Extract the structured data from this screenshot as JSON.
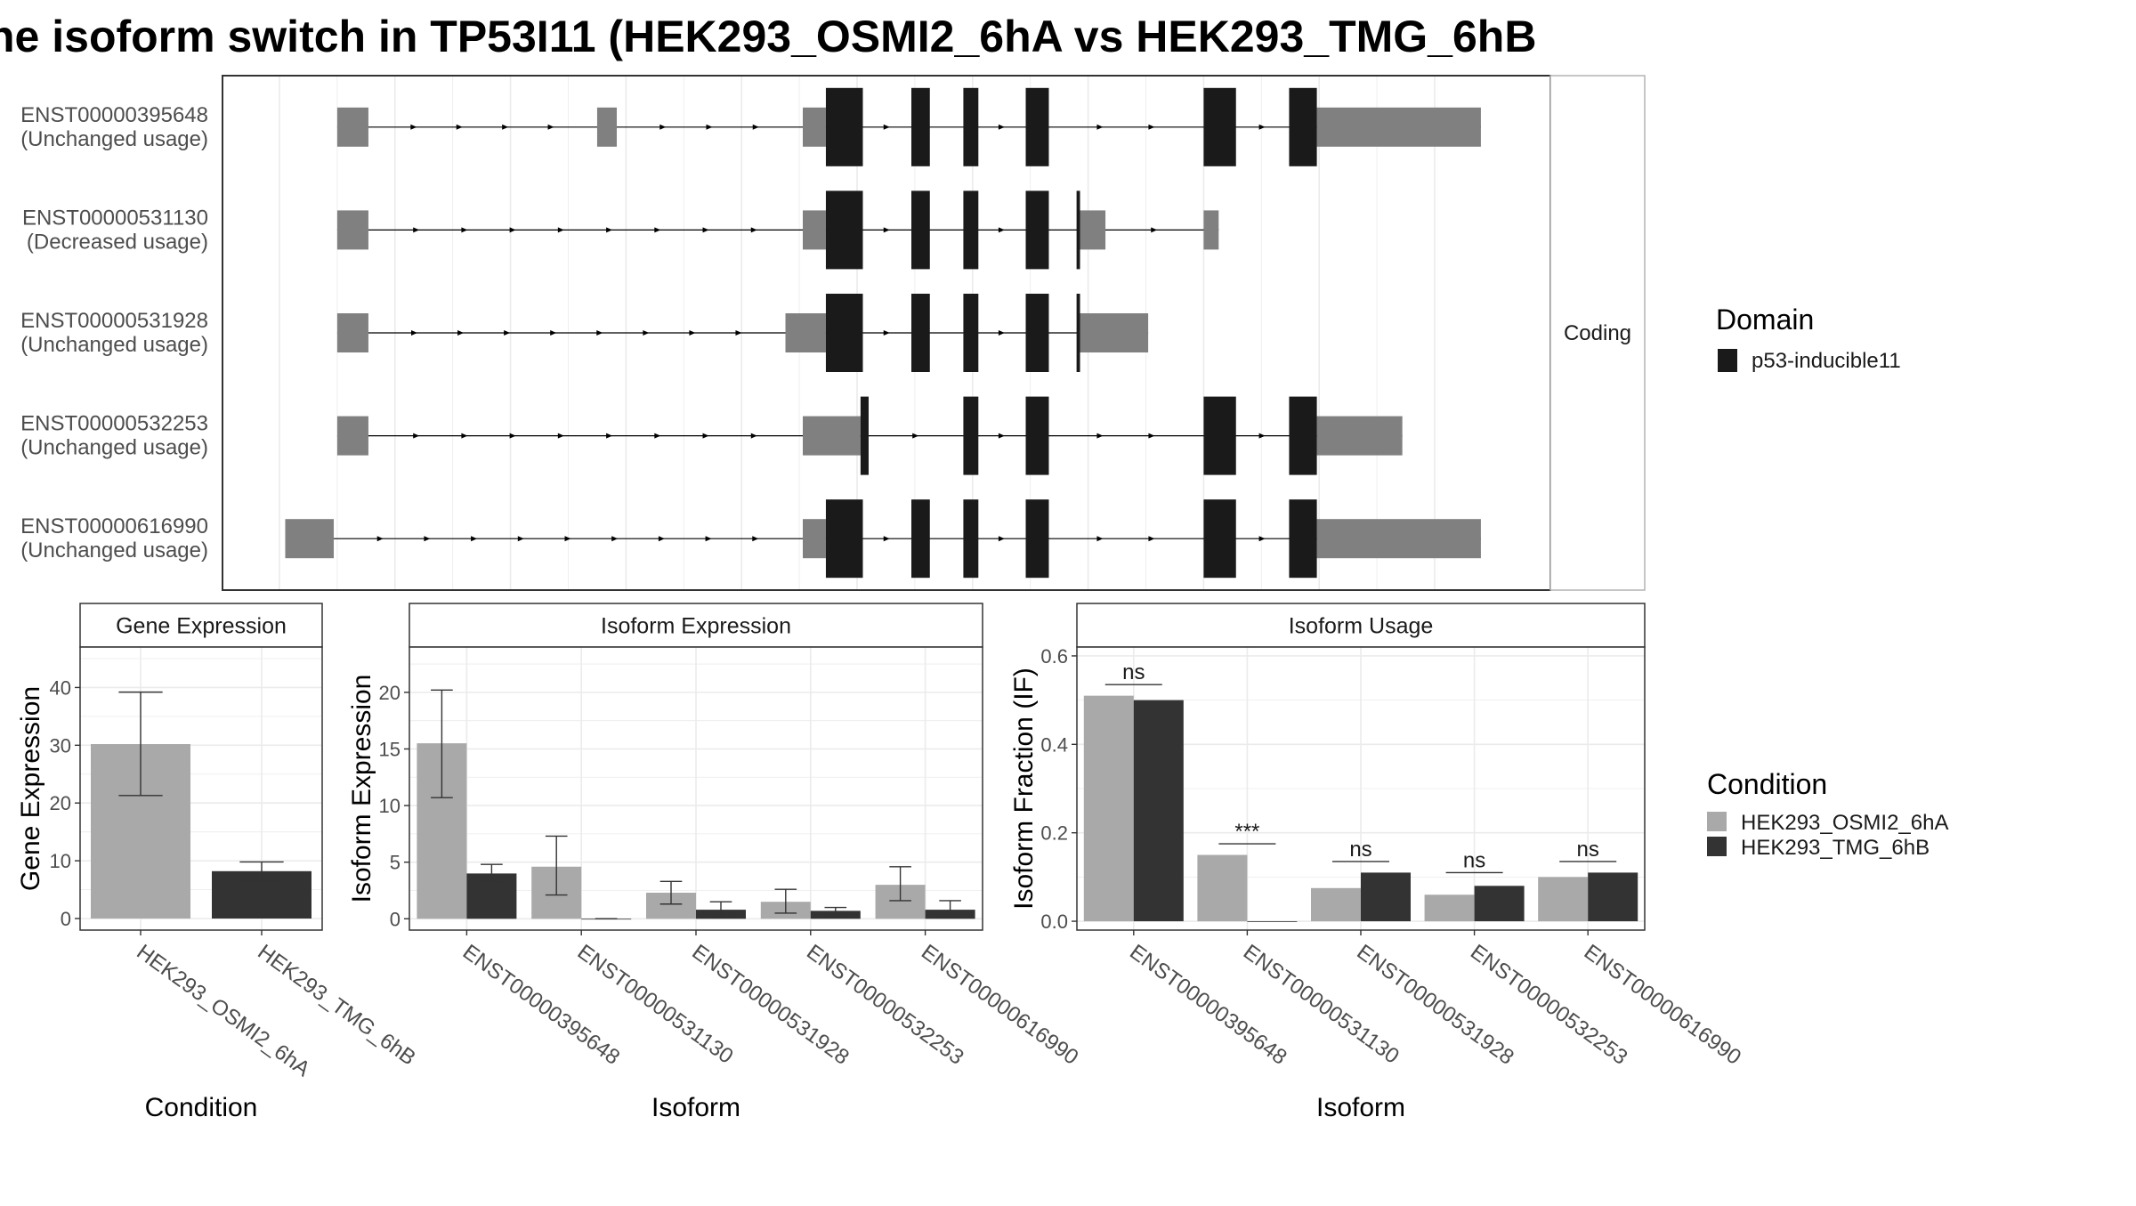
{
  "title": "ne isoform switch in TP53I11 (HEK293_OSMI2_6hA vs HEK293_TMG_6hB",
  "structure": {
    "strip_label": "Coding",
    "x_range": [
      0,
      1000
    ],
    "transcripts": [
      {
        "id": "ENST00000395648",
        "usage": "(Unchanged usage)",
        "exons": [
          [
            50,
            77,
            "utr"
          ],
          [
            275,
            292,
            "utr"
          ],
          [
            453,
            473,
            "utr"
          ],
          [
            473,
            505,
            "cds"
          ],
          [
            547,
            563,
            "cds"
          ],
          [
            592,
            605,
            "cds"
          ],
          [
            646,
            666,
            "cds"
          ],
          [
            800,
            828,
            "cds"
          ],
          [
            874,
            898,
            "cds"
          ],
          [
            898,
            1040,
            "utr"
          ]
        ]
      },
      {
        "id": "ENST00000531130",
        "usage": "(Decreased usage)",
        "exons": [
          [
            50,
            77,
            "utr"
          ],
          [
            453,
            473,
            "utr"
          ],
          [
            473,
            505,
            "cds"
          ],
          [
            547,
            563,
            "cds"
          ],
          [
            592,
            605,
            "cds"
          ],
          [
            646,
            666,
            "cds"
          ],
          [
            690,
            693,
            "cds"
          ],
          [
            693,
            715,
            "utr"
          ],
          [
            800,
            813,
            "utr"
          ]
        ]
      },
      {
        "id": "ENST00000531928",
        "usage": "(Unchanged usage)",
        "exons": [
          [
            50,
            77,
            "utr"
          ],
          [
            438,
            473,
            "utr"
          ],
          [
            473,
            505,
            "cds"
          ],
          [
            547,
            563,
            "cds"
          ],
          [
            592,
            605,
            "cds"
          ],
          [
            646,
            666,
            "cds"
          ],
          [
            690,
            693,
            "cds"
          ],
          [
            693,
            752,
            "utr"
          ]
        ]
      },
      {
        "id": "ENST00000532253",
        "usage": "(Unchanged usage)",
        "exons": [
          [
            50,
            77,
            "utr"
          ],
          [
            453,
            503,
            "utr"
          ],
          [
            503,
            510,
            "cds"
          ],
          [
            592,
            605,
            "cds"
          ],
          [
            646,
            666,
            "cds"
          ],
          [
            800,
            828,
            "cds"
          ],
          [
            874,
            898,
            "cds"
          ],
          [
            898,
            972,
            "utr"
          ]
        ]
      },
      {
        "id": "ENST00000616990",
        "usage": "(Unchanged usage)",
        "exons": [
          [
            5,
            47,
            "utr"
          ],
          [
            453,
            473,
            "utr"
          ],
          [
            473,
            505,
            "cds"
          ],
          [
            547,
            563,
            "cds"
          ],
          [
            592,
            605,
            "cds"
          ],
          [
            646,
            666,
            "cds"
          ],
          [
            800,
            828,
            "cds"
          ],
          [
            874,
            898,
            "cds"
          ],
          [
            898,
            1040,
            "utr"
          ]
        ]
      }
    ]
  },
  "domain_legend": {
    "title": "Domain",
    "items": [
      {
        "label": "p53-inducible11",
        "color": "#1a1a1a"
      }
    ]
  },
  "condition_legend": {
    "title": "Condition",
    "items": [
      {
        "label": "HEK293_OSMI2_6hA",
        "color": "#a9a9a9"
      },
      {
        "label": "HEK293_TMG_6hB",
        "color": "#333333"
      }
    ]
  },
  "chart_data": [
    {
      "type": "bar",
      "title": "Gene Expression",
      "xlabel": "Condition",
      "ylabel": "Gene Expression",
      "ylim": [
        -2,
        47
      ],
      "yticks": [
        0,
        10,
        20,
        30,
        40
      ],
      "grid": true,
      "categories": [
        "HEK293_OSMI2_6hA",
        "HEK293_TMG_6hB"
      ],
      "series": [
        {
          "values": [
            30.2,
            8.2
          ],
          "err_low": [
            21.3,
            6.5
          ],
          "err_high": [
            39.2,
            9.8
          ]
        }
      ]
    },
    {
      "type": "bar",
      "title": "Isoform Expression",
      "xlabel": "Isoform",
      "ylabel": "Isoform Expression",
      "ylim": [
        -1,
        24
      ],
      "yticks": [
        0,
        5,
        10,
        15,
        20
      ],
      "grid": true,
      "categories": [
        "ENST00000395648",
        "ENST00000531130",
        "ENST00000531928",
        "ENST00000532253",
        "ENST00000616990"
      ],
      "series": [
        {
          "name": "HEK293_OSMI2_6hA",
          "values": [
            15.5,
            4.6,
            2.3,
            1.5,
            3.0
          ],
          "err_low": [
            10.7,
            2.1,
            1.3,
            0.5,
            1.6
          ],
          "err_high": [
            20.2,
            7.3,
            3.3,
            2.6,
            4.6
          ]
        },
        {
          "name": "HEK293_TMG_6hB",
          "values": [
            4.0,
            0.0,
            0.8,
            0.7,
            0.8
          ],
          "err_low": [
            3.2,
            0.0,
            0.2,
            0.3,
            0.2
          ],
          "err_high": [
            4.8,
            0.0,
            1.5,
            1.0,
            1.6
          ]
        }
      ]
    },
    {
      "type": "bar",
      "title": "Isoform Usage",
      "xlabel": "Isoform",
      "ylabel": "Isoform Fraction (IF)",
      "ylim": [
        -0.02,
        0.62
      ],
      "yticks": [
        0.0,
        0.2,
        0.4,
        0.6
      ],
      "ytick_labels": [
        "0.0",
        "0.2",
        "0.4",
        "0.6"
      ],
      "grid": true,
      "categories": [
        "ENST00000395648",
        "ENST00000531130",
        "ENST00000531928",
        "ENST00000532253",
        "ENST00000616990"
      ],
      "series": [
        {
          "name": "HEK293_OSMI2_6hA",
          "values": [
            0.51,
            0.15,
            0.075,
            0.06,
            0.1
          ]
        },
        {
          "name": "HEK293_TMG_6hB",
          "values": [
            0.5,
            0.0,
            0.11,
            0.08,
            0.11
          ]
        }
      ],
      "annotations": [
        {
          "category": "ENST00000395648",
          "text": "ns",
          "y": 0.535
        },
        {
          "category": "ENST00000531130",
          "text": "***",
          "y": 0.175
        },
        {
          "category": "ENST00000531928",
          "text": "ns",
          "y": 0.135
        },
        {
          "category": "ENST00000532253",
          "text": "ns",
          "y": 0.11
        },
        {
          "category": "ENST00000616990",
          "text": "ns",
          "y": 0.135
        }
      ]
    }
  ]
}
